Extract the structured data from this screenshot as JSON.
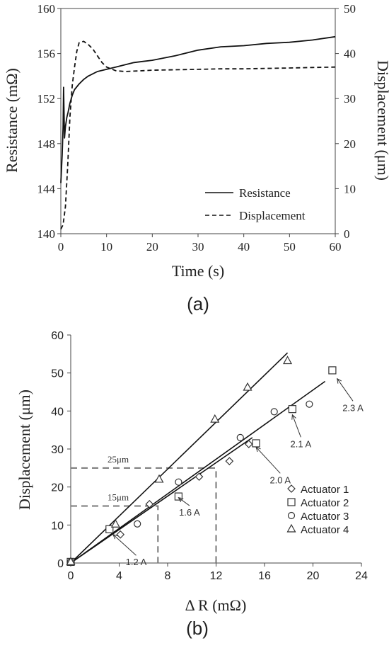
{
  "chart_data": [
    {
      "type": "line",
      "panel_label": "(a)",
      "xlabel": "Time (s)",
      "ylabel": "Resistance (mΩ)",
      "y2label": "Displacement (μm)",
      "xlim": [
        0,
        60
      ],
      "ylim": [
        140,
        160
      ],
      "y2lim": [
        0,
        50
      ],
      "xticks": [
        0,
        10,
        20,
        30,
        40,
        50,
        60
      ],
      "yticks": [
        140,
        144,
        148,
        152,
        156,
        160
      ],
      "y2ticks": [
        0,
        10,
        20,
        30,
        40,
        50
      ],
      "grid": false,
      "legend_position": "bottom-right",
      "series": [
        {
          "name": "Resistance",
          "axis": "left",
          "style": "solid",
          "x": [
            0,
            0.3,
            0.5,
            0.6,
            0.8,
            1,
            1.3,
            1.6,
            2,
            2.5,
            3,
            4,
            5,
            6,
            7,
            8,
            10,
            12,
            14,
            16,
            18,
            20,
            25,
            30,
            35,
            40,
            45,
            50,
            55,
            60
          ],
          "y": [
            144.5,
            147,
            149.5,
            153,
            148.5,
            149.5,
            150.3,
            150.8,
            151.6,
            152.3,
            152.8,
            153.3,
            153.7,
            154,
            154.2,
            154.4,
            154.6,
            154.8,
            155,
            155.2,
            155.3,
            155.4,
            155.8,
            156.3,
            156.6,
            156.7,
            156.9,
            157,
            157.2,
            157.5
          ]
        },
        {
          "name": "Displacement",
          "axis": "right",
          "style": "dashed",
          "x": [
            0,
            0.5,
            1,
            1.5,
            2,
            2.5,
            3,
            3.5,
            4,
            5,
            6,
            7,
            8,
            9,
            10,
            12,
            14,
            16,
            18,
            20,
            25,
            30,
            35,
            40,
            45,
            50,
            55,
            60
          ],
          "y": [
            1,
            2,
            6,
            15,
            26,
            33,
            37,
            40.5,
            42.4,
            42.7,
            42,
            41,
            39.5,
            38,
            37,
            36.2,
            36,
            36.1,
            36.2,
            36.3,
            36.4,
            36.5,
            36.6,
            36.6,
            36.7,
            36.8,
            36.9,
            37
          ]
        }
      ]
    },
    {
      "type": "scatter",
      "panel_label": "(b)",
      "xlabel": "Δ R (mΩ)",
      "ylabel": "Displacement (μm)",
      "xlim": [
        0,
        24
      ],
      "ylim": [
        0,
        60
      ],
      "xticks": [
        0,
        4,
        8,
        12,
        16,
        20,
        24
      ],
      "yticks": [
        0,
        10,
        20,
        30,
        40,
        50,
        60
      ],
      "grid": false,
      "legend_position": "bottom-right",
      "series": [
        {
          "name": "Actuator 1",
          "marker": "diamond",
          "x": [
            0,
            4.1,
            6.5,
            10.6,
            13.1,
            14.7
          ],
          "y": [
            0.3,
            7.5,
            15.5,
            22.7,
            26.8,
            31.3
          ]
        },
        {
          "name": "Actuator 2",
          "marker": "square",
          "x": [
            0,
            3.2,
            8.9,
            15.3,
            18.3,
            21.6
          ],
          "y": [
            0.3,
            8.9,
            17.5,
            31.5,
            40.5,
            50.7
          ]
        },
        {
          "name": "Actuator 3",
          "marker": "circle",
          "x": [
            0,
            5.5,
            8.9,
            14,
            16.8,
            19.7
          ],
          "y": [
            0.3,
            10.3,
            21.3,
            33,
            39.8,
            41.8
          ]
        },
        {
          "name": "Actuator 4",
          "marker": "triangle",
          "x": [
            0,
            3.7,
            7.3,
            11.9,
            14.6,
            17.9
          ],
          "y": [
            0.3,
            10.2,
            22,
            37.8,
            46.2,
            53.2
          ]
        }
      ],
      "fit_lines": [
        {
          "x": [
            0,
            17.9
          ],
          "y": [
            0,
            55.3
          ]
        },
        {
          "x": [
            0,
            21
          ],
          "y": [
            0,
            47.8
          ]
        },
        {
          "x": [
            0,
            15
          ],
          "y": [
            0,
            33
          ]
        }
      ],
      "reference_lines": [
        {
          "label": "25μm",
          "y": 25,
          "x": 12
        },
        {
          "label": "15μm",
          "y": 15,
          "x": 7.2
        }
      ],
      "annotations": [
        {
          "text": "1.2 A",
          "target": [
            3.5,
            7.5
          ],
          "text_at": [
            5.4,
            -0.6
          ]
        },
        {
          "text": "1.6 A",
          "target": [
            8.9,
            17.2
          ],
          "text_at": [
            9.8,
            12.5
          ]
        },
        {
          "text": "2.0 A",
          "target": [
            15.3,
            30.5
          ],
          "text_at": [
            17.3,
            21
          ]
        },
        {
          "text": "2.1 A",
          "target": [
            18.3,
            39
          ],
          "text_at": [
            19,
            30.5
          ]
        },
        {
          "text": "2.3 A",
          "target": [
            22,
            48.5
          ],
          "text_at": [
            23.3,
            40
          ]
        }
      ]
    }
  ]
}
